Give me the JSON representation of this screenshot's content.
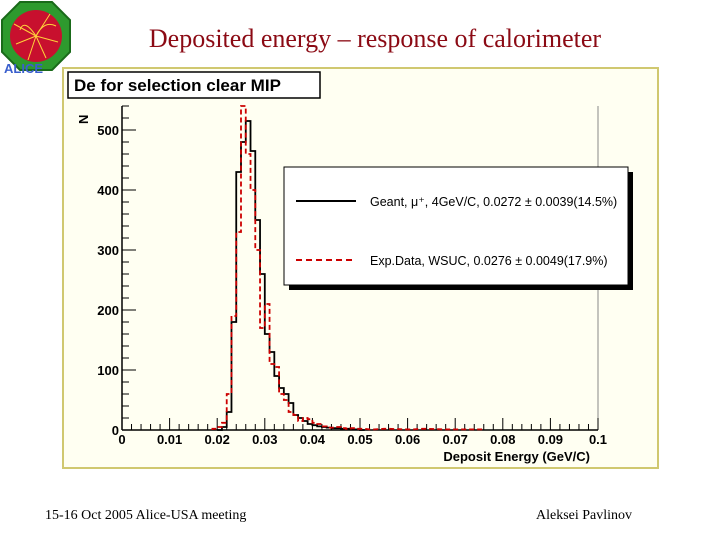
{
  "slide": {
    "title": "Deposited energy – response of calorimeter",
    "footer_left": "15-16 Oct 2005 Alice-USA meeting",
    "footer_right": "Aleksei Pavlinov",
    "logo_text": "ALICE"
  },
  "colors": {
    "frame_bg": "#fffff2",
    "frame_border": "#d0c870",
    "series_geant": "#000000",
    "series_exp": "#cc0000",
    "title_color": "#8b0a14"
  },
  "chart_data": {
    "type": "histogram",
    "title": "De for selection clear MIP",
    "xlabel": "Deposit Energy (GeV/C)",
    "ylabel": "N",
    "xlim": [
      0,
      0.1
    ],
    "ylim": [
      0,
      540
    ],
    "x_ticks": [
      "0",
      "0.01",
      "0.02",
      "0.03",
      "0.04",
      "0.05",
      "0.06",
      "0.07",
      "0.08",
      "0.09",
      "0.1"
    ],
    "y_ticks": [
      "0",
      "100",
      "200",
      "300",
      "400",
      "500"
    ],
    "legend_position": "top-right",
    "series": [
      {
        "name": "Geant, μ⁺, 4GeV/C, 0.0272 ± 0.0039(14.5%)",
        "style": "solid",
        "bin_width": 0.001,
        "x": [
          0.02,
          0.021,
          0.022,
          0.023,
          0.024,
          0.025,
          0.026,
          0.027,
          0.028,
          0.029,
          0.03,
          0.031,
          0.032,
          0.033,
          0.034,
          0.035,
          0.036,
          0.037,
          0.038,
          0.039,
          0.04,
          0.041,
          0.042,
          0.043,
          0.044,
          0.045,
          0.046,
          0.047,
          0.048,
          0.049,
          0.05
        ],
        "values": [
          0,
          5,
          30,
          180,
          430,
          480,
          515,
          465,
          350,
          260,
          160,
          130,
          90,
          70,
          60,
          45,
          25,
          20,
          15,
          10,
          8,
          6,
          5,
          4,
          3,
          3,
          2,
          2,
          1,
          1,
          0
        ]
      },
      {
        "name": "Exp.Data, WSUC, 0.0276 ± 0.0049(17.9%)",
        "style": "dashed",
        "bin_width": 0.001,
        "x": [
          0.019,
          0.02,
          0.021,
          0.022,
          0.023,
          0.024,
          0.025,
          0.026,
          0.027,
          0.028,
          0.029,
          0.03,
          0.031,
          0.032,
          0.033,
          0.034,
          0.035,
          0.036,
          0.037,
          0.038,
          0.039,
          0.04,
          0.041,
          0.042,
          0.043,
          0.044,
          0.045,
          0.046,
          0.047,
          0.048,
          0.049,
          0.05,
          0.052,
          0.055,
          0.06,
          0.063,
          0.068,
          0.07,
          0.075
        ],
        "values": [
          2,
          5,
          12,
          60,
          190,
          330,
          540,
          460,
          400,
          300,
          170,
          210,
          110,
          105,
          60,
          50,
          30,
          25,
          15,
          20,
          18,
          12,
          10,
          6,
          4,
          4,
          5,
          3,
          2,
          3,
          2,
          2,
          1,
          2,
          1,
          2,
          1,
          1,
          1
        ]
      }
    ]
  }
}
